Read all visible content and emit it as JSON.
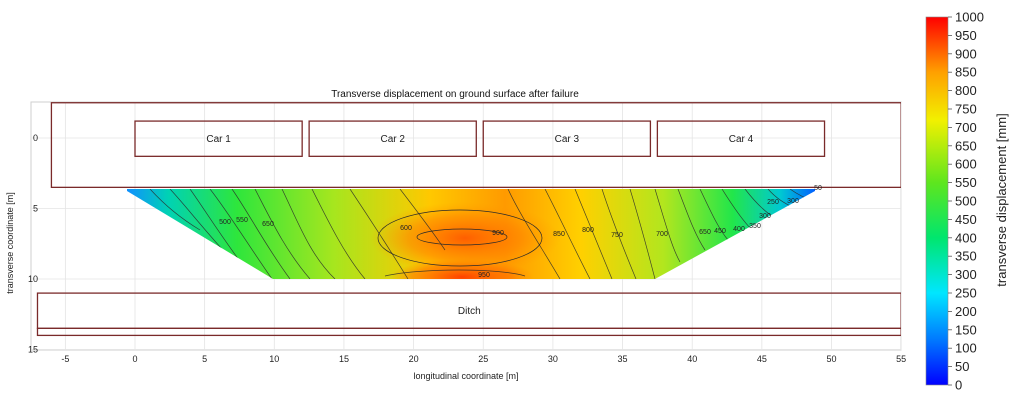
{
  "chart_data": {
    "type": "heatmap",
    "title": "Transverse displacement on ground surface after failure",
    "xlabel": "longitudinal coordinate [m]",
    "ylabel": "transverse coordinate [m]",
    "xlim": [
      -7,
      55
    ],
    "ylim": [
      15,
      -2
    ],
    "x_ticks": [
      "-5",
      "0",
      "5",
      "10",
      "15",
      "20",
      "25",
      "30",
      "35",
      "40",
      "45",
      "50",
      "55"
    ],
    "y_ticks": [
      "0",
      "5",
      "10",
      "15"
    ],
    "grid": true,
    "colorbar": {
      "label": "transverse displacement [mm]",
      "min": 0,
      "max": 1000,
      "ticks": [
        "1000",
        "950",
        "900",
        "850",
        "800",
        "750",
        "700",
        "650",
        "600",
        "550",
        "500",
        "450",
        "400",
        "350",
        "300",
        "250",
        "200",
        "150",
        "100",
        "50",
        "0"
      ],
      "colors": [
        "#0000ff",
        "#00b7ff",
        "#00e6c8",
        "#1ee650",
        "#7de61e",
        "#f2f000",
        "#ffb400",
        "#ff6a00",
        "#ff0000"
      ]
    },
    "regions": [
      {
        "label": "Car 1",
        "x": [
          0,
          12
        ],
        "y": [
          -1.2,
          1.3
        ]
      },
      {
        "label": "Car 2",
        "x": [
          12.5,
          24.5
        ],
        "y": [
          -1.2,
          1.3
        ]
      },
      {
        "label": "Car 3",
        "x": [
          25,
          37
        ],
        "y": [
          -1.2,
          1.3
        ]
      },
      {
        "label": "Car 4",
        "x": [
          37.5,
          49.5
        ],
        "y": [
          -1.2,
          1.3
        ]
      },
      {
        "label": "",
        "x": [
          -6,
          55
        ],
        "y": [
          -2.5,
          3.5
        ]
      },
      {
        "label": "Ditch",
        "x": [
          -7,
          55
        ],
        "y": [
          11,
          13.5
        ]
      },
      {
        "label": "",
        "x": [
          -7,
          55
        ],
        "y": [
          13.5,
          14
        ]
      }
    ],
    "contour_labels": [
      "500",
      "550",
      "650",
      "600",
      "900",
      "850",
      "950",
      "800",
      "750",
      "700",
      "650",
      "450",
      "400",
      "350",
      "300",
      "250",
      "300",
      "50"
    ]
  }
}
